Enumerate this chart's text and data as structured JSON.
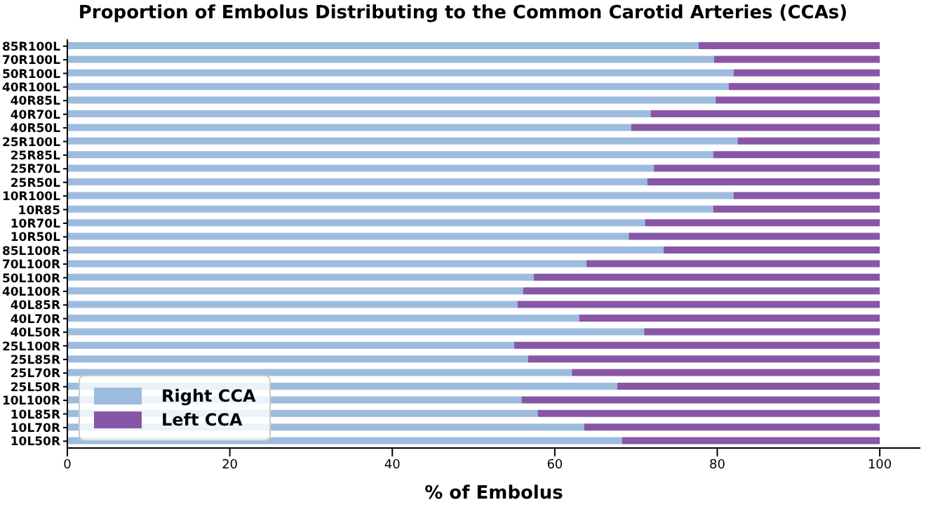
{
  "chart_data": {
    "type": "bar",
    "title": "Proportion of Embolus Distributing to the Common Carotid Arteries (CCAs)",
    "xlabel": "% of Embolus",
    "orientation": "horizontal",
    "stacked": true,
    "categories": [
      "85R100L",
      "70R100L",
      "50R100L",
      "40R100L",
      "40R85L",
      "40R70L",
      "40R50L",
      "25R100L",
      "25R85L",
      "25R70L",
      "25R50L",
      "10R100L",
      "10R85",
      "10R70L",
      "10R50L",
      "85L100R",
      "70L100R",
      "50L100R",
      "40L100R",
      "40L85R",
      "40L70R",
      "40L50R",
      "25L100R",
      "25L85R",
      "25L70R",
      "25L50R",
      "10L100R",
      "10L85R",
      "10L70R",
      "10L50R"
    ],
    "series": [
      {
        "name": "Right CCA",
        "color": "#9dbcdd",
        "values": [
          77.7,
          79.6,
          82,
          81.4,
          79.8,
          71.8,
          69.4,
          82.5,
          79.5,
          72.2,
          71.4,
          82,
          79.5,
          71.1,
          69.1,
          73.4,
          63.9,
          57.4,
          56.1,
          55.4,
          63,
          71,
          55,
          56.7,
          62.1,
          67.7,
          55.9,
          57.9,
          63.6,
          68.3
        ]
      },
      {
        "name": "Left CCA",
        "color": "#8856a7",
        "values": [
          22.3,
          20.4,
          18,
          18.6,
          20.2,
          28.2,
          30.6,
          17.5,
          20.5,
          27.8,
          28.6,
          18,
          20.5,
          28.9,
          30.9,
          26.6,
          36.1,
          42.6,
          43.9,
          44.6,
          37,
          29,
          45,
          43.3,
          37.9,
          32.3,
          44.1,
          42.1,
          36.4,
          31.7
        ]
      }
    ],
    "xlim": [
      0,
      105
    ],
    "xticks": [
      0,
      20,
      40,
      60,
      80,
      100
    ],
    "legend": "bottom left",
    "grid": false
  }
}
